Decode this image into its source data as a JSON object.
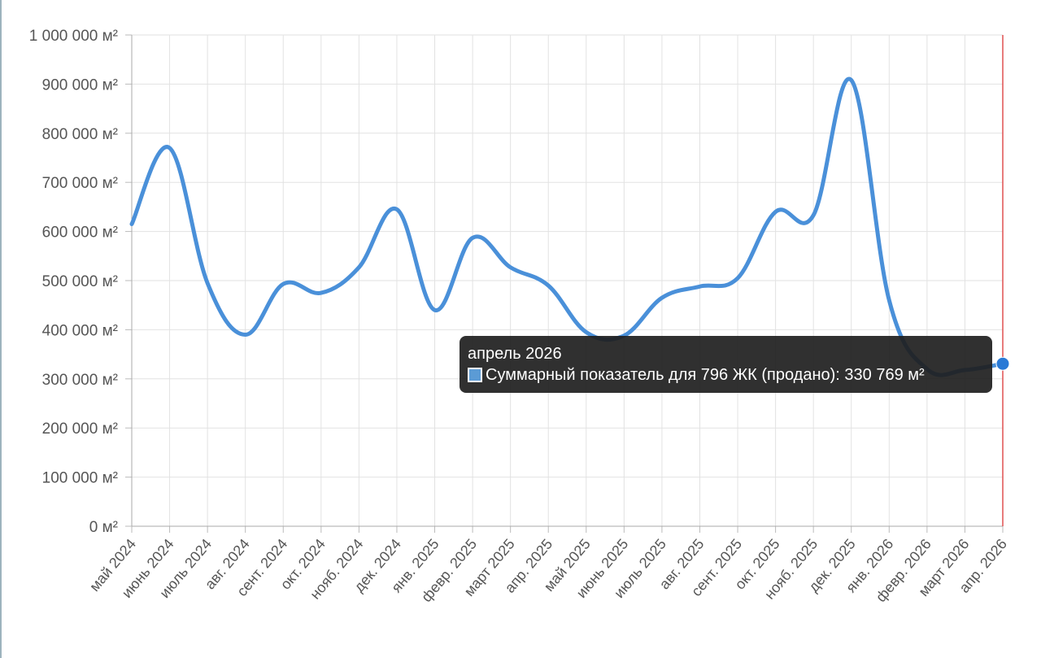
{
  "chart_data": {
    "type": "line",
    "categories": [
      "май 2024",
      "июнь 2024",
      "июль 2024",
      "авг. 2024",
      "сент. 2024",
      "окт. 2024",
      "нояб. 2024",
      "дек. 2024",
      "янв. 2025",
      "февр. 2025",
      "март 2025",
      "апр. 2025",
      "май 2025",
      "июнь 2025",
      "июль 2025",
      "авг. 2025",
      "сент. 2025",
      "окт. 2025",
      "нояб. 2025",
      "дек. 2025",
      "янв. 2026",
      "февр. 2026",
      "март 2026",
      "апр. 2026"
    ],
    "series": [
      {
        "values": [
          615000,
          770000,
          495000,
          390000,
          493000,
          475000,
          527000,
          645000,
          440000,
          587000,
          527000,
          490000,
          395000,
          388000,
          465000,
          488000,
          505000,
          640000,
          633000,
          908000,
          460000,
          320000,
          318000,
          330769
        ],
        "color": "#4a90d9"
      }
    ],
    "ylim": [
      0,
      1000000
    ],
    "y_ticks": [
      "0 м²",
      "100 000 м²",
      "200 000 м²",
      "300 000 м²",
      "400 000 м²",
      "500 000 м²",
      "600 000 м²",
      "700 000 м²",
      "800 000 м²",
      "900 000 м²",
      "1 000 000 м²"
    ],
    "grid": true,
    "highlight_line_color": "#e05050"
  },
  "tooltip": {
    "title": "апрель 2026",
    "label": "Суммарный показатель для 796 ЖК (продано): 330 769 м²",
    "swatch_color": "#5b9bd5"
  }
}
